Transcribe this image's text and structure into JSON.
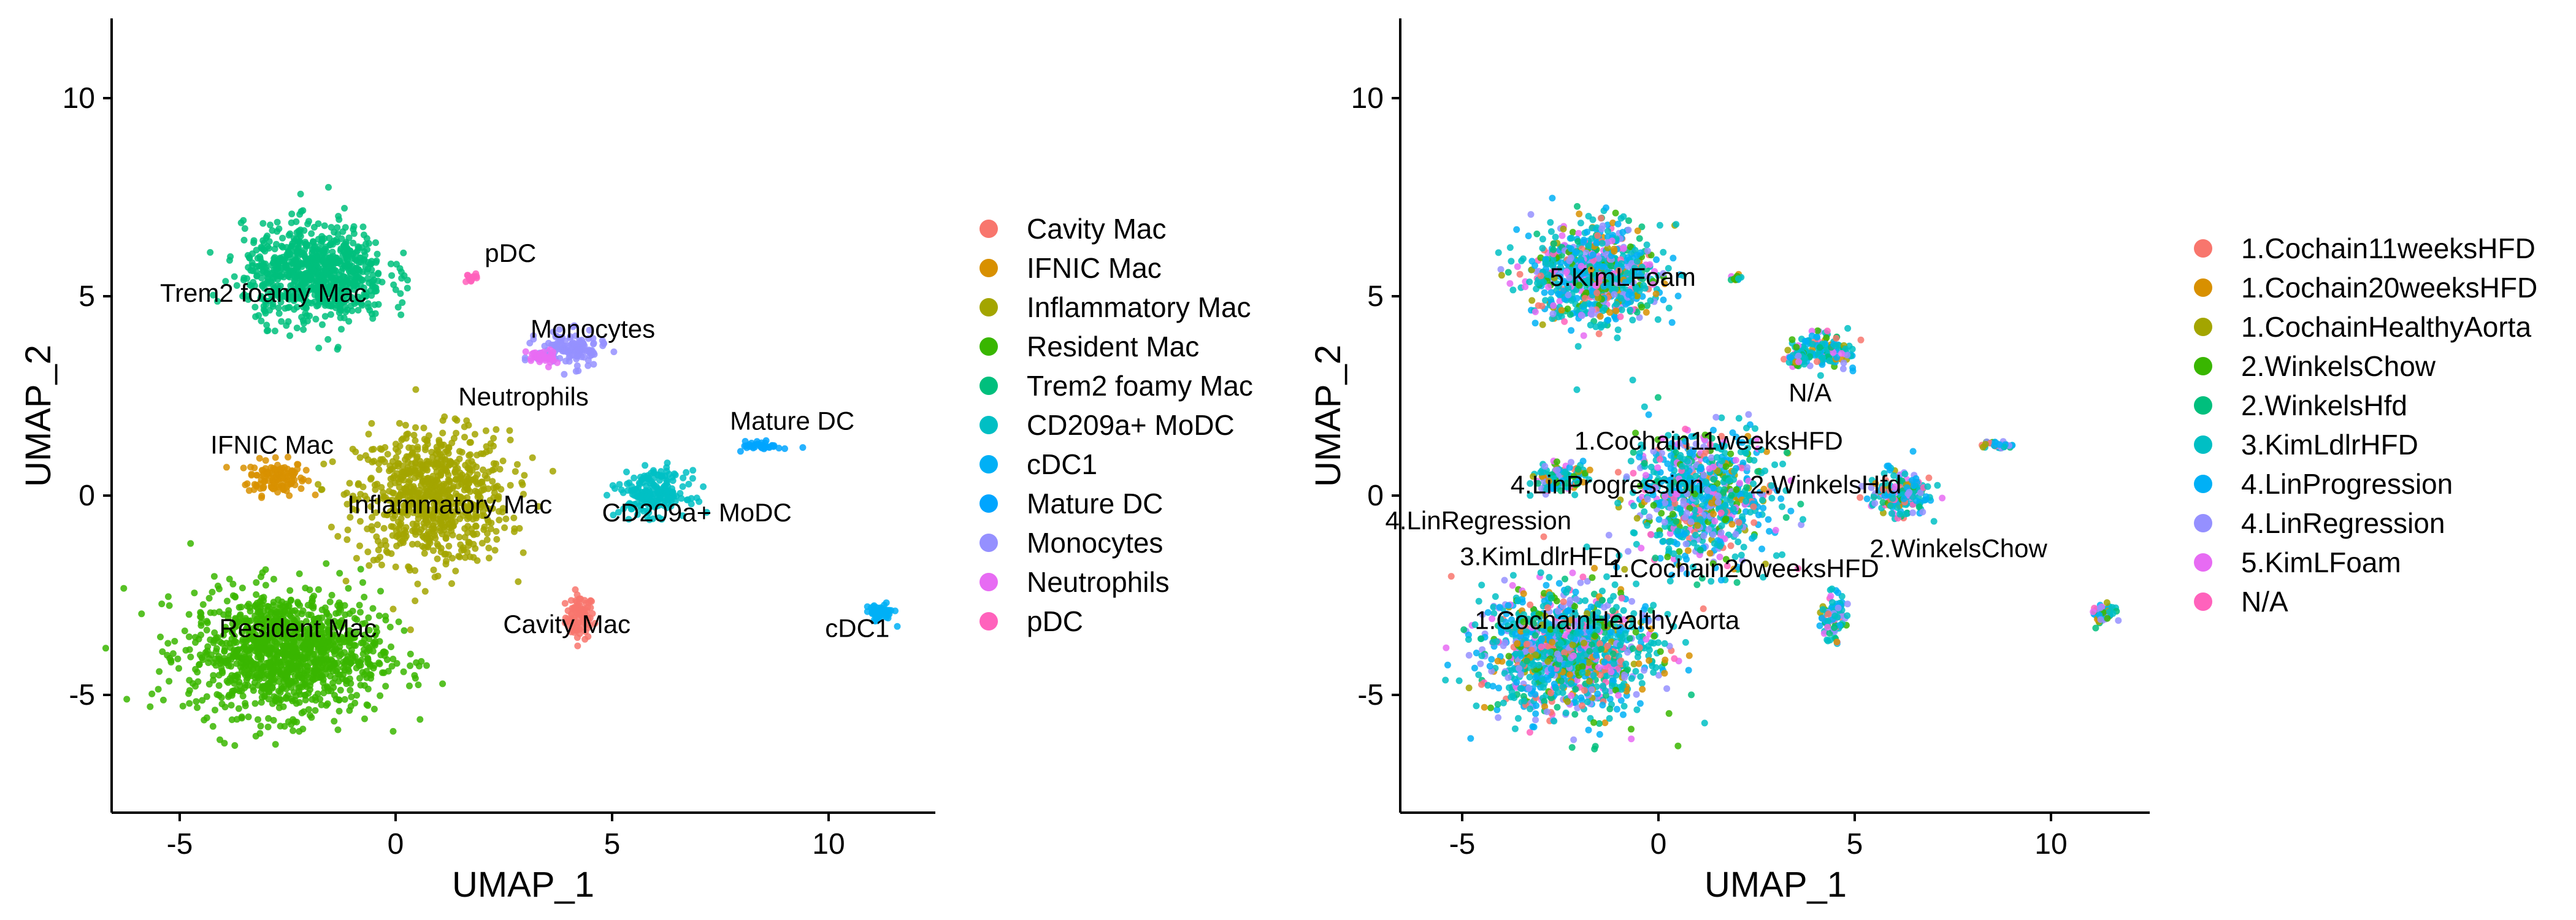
{
  "panels": [
    {
      "id": "left",
      "xlabel": "UMAP_1",
      "ylabel": "UMAP_2",
      "xticks": [
        "-5",
        "0",
        "5",
        "10"
      ],
      "yticks": [
        "10",
        "5",
        "0",
        "-5"
      ],
      "legend": [
        {
          "label": "Cavity Mac",
          "color": "#F8766D"
        },
        {
          "label": "IFNIC Mac",
          "color": "#D89000"
        },
        {
          "label": "Inflammatory Mac",
          "color": "#A3A500"
        },
        {
          "label": "Resident Mac",
          "color": "#39B600"
        },
        {
          "label": "Trem2 foamy Mac",
          "color": "#00BF7D"
        },
        {
          "label": "CD209a+ MoDC",
          "color": "#00BFC4"
        },
        {
          "label": "cDC1",
          "color": "#00B0F6"
        },
        {
          "label": "Mature DC",
          "color": "#00A5FF"
        },
        {
          "label": "Monocytes",
          "color": "#9590FF"
        },
        {
          "label": "Neutrophils",
          "color": "#E76BF3"
        },
        {
          "label": "pDC",
          "color": "#FF62BC"
        }
      ],
      "cluster_labels": [
        {
          "text": "pDC",
          "x": 2.6,
          "y": 5.9
        },
        {
          "text": "Trem2 foamy Mac",
          "x": -3.1,
          "y": 4.9
        },
        {
          "text": "Monocytes",
          "x": 4.5,
          "y": 4.0
        },
        {
          "text": "Neutrophils",
          "x": 2.9,
          "y": 2.3
        },
        {
          "text": "IFNIC Mac",
          "x": -2.9,
          "y": 1.1
        },
        {
          "text": "Mature DC",
          "x": 9.1,
          "y": 1.7
        },
        {
          "text": "Inflammatory Mac",
          "x": 1.2,
          "y": -0.4
        },
        {
          "text": "CD209a+ MoDC",
          "x": 6.9,
          "y": -0.6
        },
        {
          "text": "Resident Mac",
          "x": -2.3,
          "y": -3.5
        },
        {
          "text": "Cavity Mac",
          "x": 3.9,
          "y": -3.4
        },
        {
          "text": "cDC1",
          "x": 10.6,
          "y": -3.5
        }
      ]
    },
    {
      "id": "right",
      "xlabel": "UMAP_1",
      "ylabel": "UMAP_2",
      "xticks": [
        "-5",
        "0",
        "5",
        "10"
      ],
      "yticks": [
        "10",
        "5",
        "0",
        "-5"
      ],
      "legend": [
        {
          "label": "1.Cochain11weeksHFD",
          "color": "#F8766D"
        },
        {
          "label": "1.Cochain20weeksHFD",
          "color": "#D89000"
        },
        {
          "label": "1.CochainHealthyAorta",
          "color": "#A3A500"
        },
        {
          "label": "2.WinkelsChow",
          "color": "#39B600"
        },
        {
          "label": "2.WinkelsHfd",
          "color": "#00BF7D"
        },
        {
          "label": "3.KimLdlrHFD",
          "color": "#00BFC4"
        },
        {
          "label": "4.LinProgression",
          "color": "#00B0F6"
        },
        {
          "label": "4.LinRegression",
          "color": "#9590FF"
        },
        {
          "label": "5.KimLFoam",
          "color": "#E76BF3"
        },
        {
          "label": "N/A",
          "color": "#FF62BC"
        }
      ],
      "cluster_labels": [
        {
          "text": "5.KimLFoam",
          "x": -1.2,
          "y": 5.3
        },
        {
          "text": "N/A",
          "x": 3.6,
          "y": 2.4
        },
        {
          "text": "1.Cochain11weeksHFD",
          "x": 1.0,
          "y": 1.2
        },
        {
          "text": "4.LinProgression",
          "x": -1.6,
          "y": 0.1
        },
        {
          "text": "2.WinkelsHfd",
          "x": 4.0,
          "y": 0.1
        },
        {
          "text": "4.LinRegression",
          "x": -4.9,
          "y": -0.8
        },
        {
          "text": "3.KimLdlrHFD",
          "x": -3.3,
          "y": -1.7
        },
        {
          "text": "1.Cochain20weeksHFD",
          "x": 1.9,
          "y": -2.0
        },
        {
          "text": "2.WinkelsChow",
          "x": 7.4,
          "y": -1.5
        },
        {
          "text": "1.CochainHealthyAorta",
          "x": -1.6,
          "y": -3.3
        }
      ]
    }
  ],
  "chart_data": [
    {
      "type": "scatter",
      "xlabel": "UMAP_1",
      "ylabel": "UMAP_2",
      "xlim": [
        -6.6,
        12.4
      ],
      "ylim": [
        -7.9,
        12.0
      ],
      "grid": false,
      "legend_position": "right",
      "series": [
        {
          "name": "Cavity Mac",
          "color": "#F8766D",
          "centroid": [
            4.2,
            -3.0
          ],
          "spread": [
            0.3,
            0.5
          ],
          "n": 90
        },
        {
          "name": "IFNIC Mac",
          "color": "#D89000",
          "centroid": [
            -2.8,
            0.5
          ],
          "spread": [
            0.6,
            0.4
          ],
          "n": 130
        },
        {
          "name": "Inflammatory Mac",
          "color": "#A3A500",
          "centroid": [
            0.8,
            0.0
          ],
          "spread": [
            1.6,
            1.5
          ],
          "n": 800
        },
        {
          "name": "Resident Mac",
          "color": "#39B600",
          "centroid": [
            -2.6,
            -3.9
          ],
          "spread": [
            2.0,
            1.4
          ],
          "n": 1200
        },
        {
          "name": "Trem2 foamy Mac",
          "color": "#00BF7D",
          "centroid": [
            -1.9,
            5.6
          ],
          "spread": [
            1.5,
            1.1
          ],
          "n": 800
        },
        {
          "name": "CD209a+ MoDC",
          "color": "#00BFC4",
          "centroid": [
            5.9,
            0.1
          ],
          "spread": [
            0.7,
            0.5
          ],
          "n": 200
        },
        {
          "name": "cDC1",
          "color": "#00B0F6",
          "centroid": [
            11.1,
            -2.9
          ],
          "spread": [
            0.3,
            0.2
          ],
          "n": 60
        },
        {
          "name": "Mature DC",
          "color": "#00A5FF",
          "centroid": [
            8.4,
            1.3
          ],
          "spread": [
            0.4,
            0.1
          ],
          "n": 40
        },
        {
          "name": "Monocytes",
          "color": "#9590FF",
          "centroid": [
            4.0,
            3.7
          ],
          "spread": [
            0.7,
            0.4
          ],
          "n": 130
        },
        {
          "name": "Neutrophils",
          "color": "#E76BF3",
          "centroid": [
            3.3,
            3.5
          ],
          "spread": [
            0.3,
            0.2
          ],
          "n": 40
        },
        {
          "name": "pDC",
          "color": "#FF62BC",
          "centroid": [
            1.7,
            5.5
          ],
          "spread": [
            0.12,
            0.1
          ],
          "n": 15
        }
      ]
    },
    {
      "type": "scatter",
      "xlabel": "UMAP_1",
      "ylabel": "UMAP_2",
      "xlim": [
        -6.9,
        12.3
      ],
      "ylim": [
        -7.9,
        12.0
      ],
      "grid": false,
      "legend_position": "right",
      "series": [
        {
          "name": "1.Cochain11weeksHFD",
          "color": "#F8766D",
          "share": 0.04
        },
        {
          "name": "1.Cochain20weeksHFD",
          "color": "#D89000",
          "share": 0.04
        },
        {
          "name": "1.CochainHealthyAorta",
          "color": "#A3A500",
          "share": 0.04
        },
        {
          "name": "2.WinkelsChow",
          "color": "#39B600",
          "share": 0.06
        },
        {
          "name": "2.WinkelsHfd",
          "color": "#00BF7D",
          "share": 0.08
        },
        {
          "name": "3.KimLdlrHFD",
          "color": "#00BFC4",
          "share": 0.3
        },
        {
          "name": "4.LinProgression",
          "color": "#00B0F6",
          "share": 0.22
        },
        {
          "name": "4.LinRegression",
          "color": "#9590FF",
          "share": 0.12
        },
        {
          "name": "5.KimLFoam",
          "color": "#E76BF3",
          "share": 0.07
        },
        {
          "name": "N/A",
          "color": "#FF62BC",
          "share": 0.03
        }
      ]
    }
  ]
}
